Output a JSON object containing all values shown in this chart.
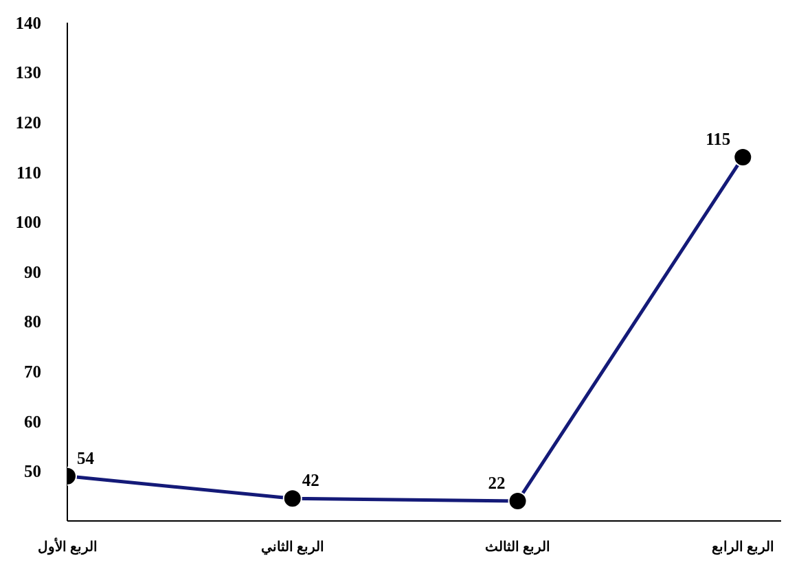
{
  "chart_data": {
    "type": "line",
    "categories": [
      "الربع الأول",
      "الربع الثاني",
      "الربع الثالث",
      "الربع الرابع"
    ],
    "series": [
      {
        "color": "#141a78",
        "values": [
          49,
          44.5,
          44,
          113
        ]
      }
    ],
    "annotations": [
      {
        "text": "54",
        "x": "الربع الأول",
        "y": 49
      },
      {
        "text": "42",
        "x": "الربع الثاني",
        "y": 44.5
      },
      {
        "text": "22",
        "x": "الربع الثالث",
        "y": 44
      },
      {
        "text": "115",
        "x": "الربع الرابع",
        "y": 113
      }
    ],
    "ylim": [
      40,
      140
    ],
    "yticks": [
      50,
      60,
      70,
      80,
      90,
      100,
      110,
      120,
      130,
      140
    ],
    "grid": false,
    "legend": false,
    "marker": "circle",
    "line_style": "solid"
  }
}
